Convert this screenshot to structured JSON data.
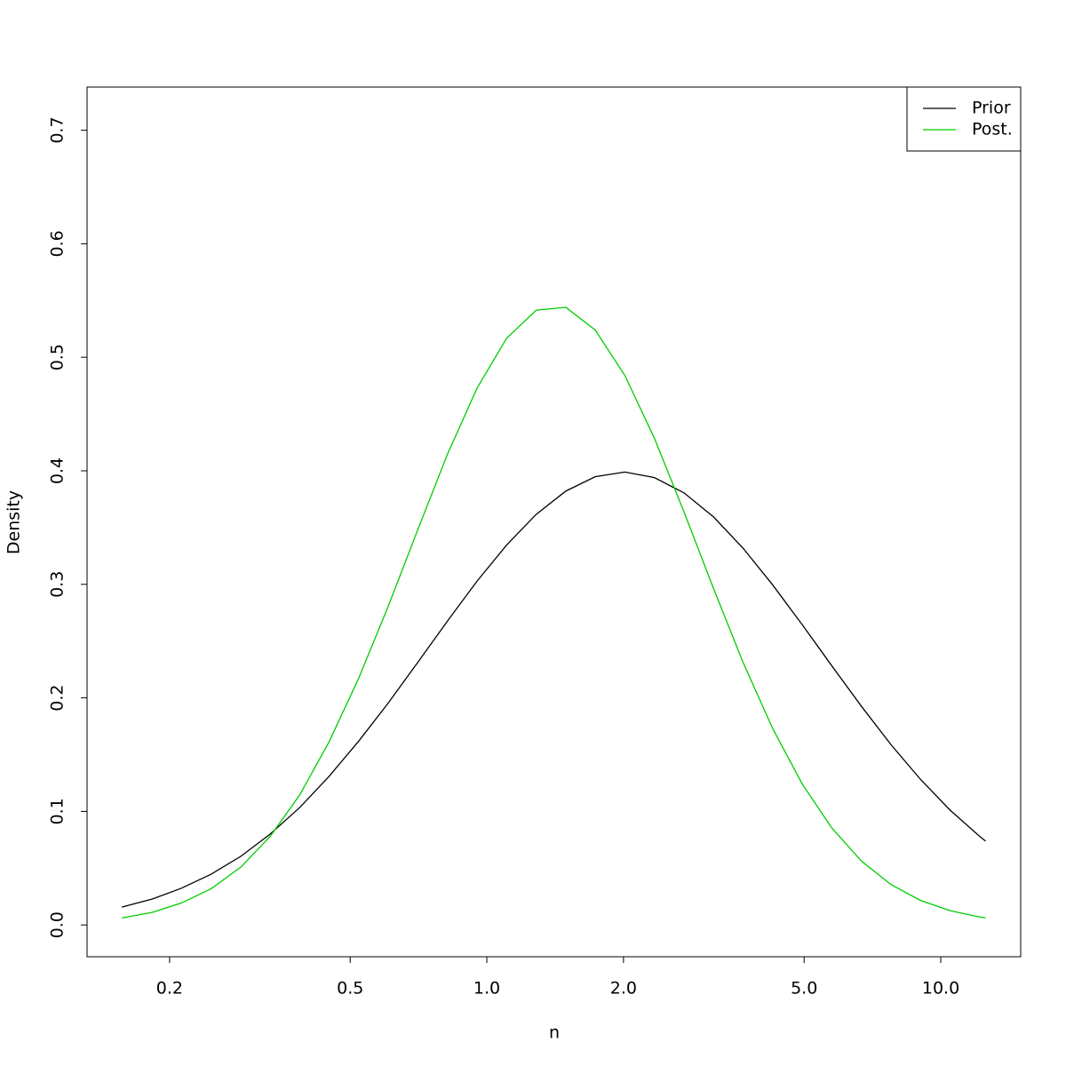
{
  "chart_data": {
    "type": "line",
    "xlabel": "n",
    "ylabel": "Density",
    "xlog": true,
    "x": [
      0.157,
      0.183,
      0.212,
      0.247,
      0.287,
      0.333,
      0.387,
      0.449,
      0.522,
      0.607,
      0.705,
      0.819,
      0.951,
      1.105,
      1.284,
      1.492,
      1.733,
      2.014,
      2.34,
      2.718,
      3.158,
      3.669,
      4.263,
      4.953,
      5.755,
      6.686,
      7.768,
      9.025,
      10.486,
      12.182,
      12.553
    ],
    "series": [
      {
        "name": "Prior",
        "color": "#000000",
        "values": [
          0.0157,
          0.0228,
          0.0322,
          0.0447,
          0.0604,
          0.08,
          0.1034,
          0.1308,
          0.1619,
          0.1957,
          0.2315,
          0.2677,
          0.3027,
          0.3345,
          0.3616,
          0.3821,
          0.3948,
          0.3989,
          0.394,
          0.3806,
          0.3594,
          0.3318,
          0.2995,
          0.2644,
          0.2282,
          0.1926,
          0.1588,
          0.1282,
          0.1011,
          0.078,
          0.0738
        ]
      },
      {
        "name": "Post.",
        "color": "#00cd00",
        "values": [
          0.0061,
          0.011,
          0.0192,
          0.0319,
          0.0509,
          0.0779,
          0.1145,
          0.1611,
          0.2173,
          0.2811,
          0.3485,
          0.4147,
          0.4726,
          0.5166,
          0.5414,
          0.544,
          0.524,
          0.484,
          0.4286,
          0.3639,
          0.2963,
          0.2312,
          0.173,
          0.1241,
          0.0854,
          0.0563,
          0.0356,
          0.0216,
          0.0126,
          0.007,
          0.0062
        ]
      }
    ],
    "xlim": [
      0.1316,
      15.0
    ],
    "xticks": [
      0.2,
      0.5,
      {
        "value": 1,
        "label": "1.0"
      },
      {
        "value": 2,
        "label": "2.0"
      },
      {
        "value": 5,
        "label": "5.0"
      },
      {
        "value": 10,
        "label": "10.0"
      }
    ],
    "ylim": [
      -0.028,
      0.738
    ],
    "yticks": [
      {
        "value": 0,
        "label": "0.0"
      },
      0.1,
      0.2,
      0.3,
      0.4,
      0.5,
      0.6,
      0.7
    ],
    "legend": "top-right",
    "grid": false
  }
}
